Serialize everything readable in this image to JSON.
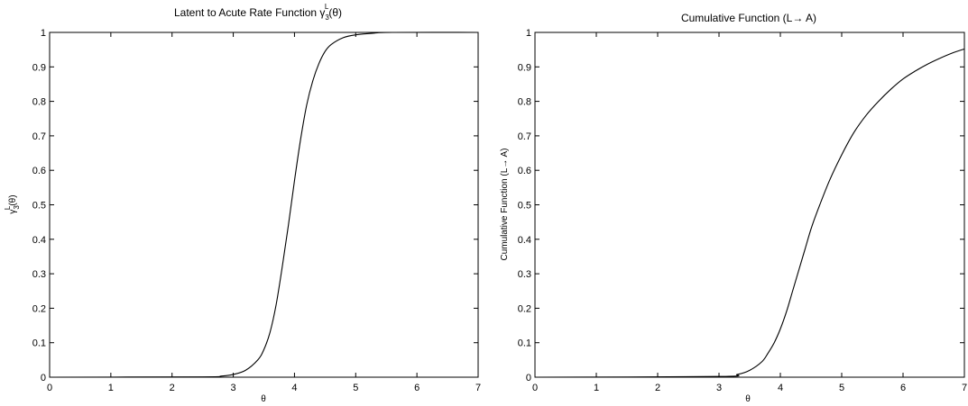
{
  "chart_data": [
    {
      "type": "line",
      "title_prefix": "Latent to Acute Rate Function ",
      "title_symbol": "γ",
      "title_sub": "3",
      "title_sup": "L",
      "title_suffix": "(θ)",
      "xlabel": "θ",
      "ylabel_symbol": "γ",
      "ylabel_sub": "3",
      "ylabel_sup": "L",
      "ylabel_suffix": "(θ)",
      "xlim": [
        0,
        7
      ],
      "ylim": [
        0,
        1
      ],
      "xticks": [
        "0",
        "1",
        "2",
        "3",
        "4",
        "5",
        "6",
        "7"
      ],
      "yticks": [
        "0",
        "0.1",
        "0.2",
        "0.3",
        "0.4",
        "0.5",
        "0.6",
        "0.7",
        "0.8",
        "0.9",
        "1"
      ],
      "grid": false,
      "series": [
        {
          "x": [
            0,
            2.5,
            2.8,
            3.0,
            3.2,
            3.4,
            3.5,
            3.6,
            3.7,
            3.8,
            3.9,
            4.0,
            4.1,
            4.2,
            4.3,
            4.4,
            4.5,
            4.6,
            4.8,
            5.0,
            5.3,
            5.6,
            7.0
          ],
          "y": [
            0,
            0.001,
            0.003,
            0.008,
            0.02,
            0.05,
            0.08,
            0.13,
            0.21,
            0.32,
            0.44,
            0.57,
            0.69,
            0.79,
            0.86,
            0.91,
            0.945,
            0.965,
            0.985,
            0.993,
            0.998,
            1.0,
            1.0
          ]
        }
      ]
    },
    {
      "type": "line",
      "title": "Cumulative Function (L→ A)",
      "xlabel": "θ",
      "ylabel": "Cumulative Function (L→ A)",
      "xlim": [
        0,
        7
      ],
      "ylim": [
        0,
        1
      ],
      "xticks": [
        "0",
        "1",
        "2",
        "3",
        "4",
        "5",
        "6",
        "7"
      ],
      "yticks": [
        "0",
        "0.1",
        "0.2",
        "0.3",
        "0.4",
        "0.5",
        "0.6",
        "0.7",
        "0.8",
        "0.9",
        "1"
      ],
      "grid": false,
      "series": [
        {
          "x": [
            0,
            3.0,
            3.3,
            3.5,
            3.7,
            3.8,
            3.9,
            4.0,
            4.1,
            4.2,
            4.3,
            4.4,
            4.5,
            4.6,
            4.8,
            5.0,
            5.2,
            5.4,
            5.6,
            5.8,
            6.0,
            6.2,
            6.4,
            6.6,
            6.8,
            7.0
          ],
          "y": [
            0,
            0.002,
            0.008,
            0.02,
            0.045,
            0.07,
            0.1,
            0.14,
            0.19,
            0.25,
            0.31,
            0.37,
            0.43,
            0.48,
            0.57,
            0.645,
            0.71,
            0.76,
            0.8,
            0.835,
            0.865,
            0.888,
            0.908,
            0.925,
            0.94,
            0.952
          ]
        }
      ]
    }
  ]
}
